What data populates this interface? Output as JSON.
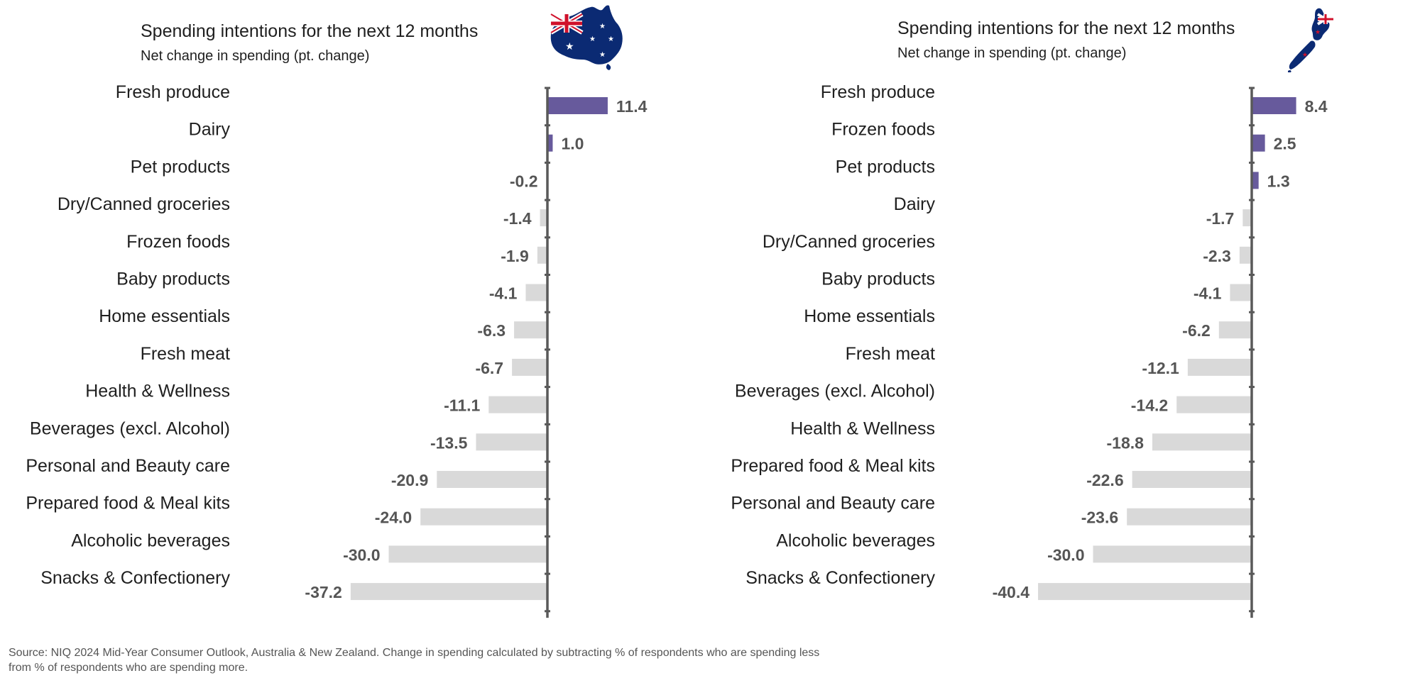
{
  "colors": {
    "positive": "#675a9c",
    "negative": "#d9d9d9",
    "axis": "#595959",
    "value_text": "#555555"
  },
  "chart_data": [
    {
      "type": "bar",
      "orientation": "horizontal",
      "title": "Spending intentions for the next 12 months",
      "subtitle": "Net change in spending (pt. change)",
      "flag_icon": "australia-flag-icon",
      "categories": [
        "Fresh produce",
        "Dairy",
        "Pet products",
        "Dry/Canned groceries",
        "Frozen foods",
        "Baby products",
        "Home essentials",
        "Fresh meat",
        "Health & Wellness",
        "Beverages (excl. Alcohol)",
        "Personal and Beauty care",
        "Prepared food & Meal kits",
        "Alcoholic beverages",
        "Snacks & Confectionery"
      ],
      "values": [
        11.4,
        1.0,
        -0.2,
        -1.4,
        -1.9,
        -4.1,
        -6.3,
        -6.7,
        -11.1,
        -13.5,
        -20.9,
        -24.0,
        -30.0,
        -37.2
      ],
      "value_labels": [
        "11.4",
        "1.0",
        "-0.2",
        "-1.4",
        "-1.9",
        "-4.1",
        "-6.3",
        "-6.7",
        "-11.1",
        "-13.5",
        "-20.9",
        "-24.0",
        "-30.0",
        "-37.2"
      ],
      "xlim": [
        -40.4,
        11.4
      ],
      "grid": false
    },
    {
      "type": "bar",
      "orientation": "horizontal",
      "title": "Spending intentions for the next 12 months",
      "subtitle": "Net change in spending (pt. change)",
      "flag_icon": "new-zealand-flag-icon",
      "categories": [
        "Fresh produce",
        "Frozen foods",
        "Pet products",
        "Dairy",
        "Dry/Canned groceries",
        "Baby products",
        "Home essentials",
        "Fresh meat",
        "Beverages (excl. Alcohol)",
        "Health & Wellness",
        "Prepared food & Meal kits",
        "Personal and Beauty care",
        "Alcoholic beverages",
        "Snacks & Confectionery"
      ],
      "values": [
        8.4,
        2.5,
        1.3,
        -1.7,
        -2.3,
        -4.1,
        -6.2,
        -12.1,
        -14.2,
        -18.8,
        -22.6,
        -23.6,
        -30.0,
        -40.4
      ],
      "value_labels": [
        "8.4",
        "2.5",
        "1.3",
        "-1.7",
        "-2.3",
        "-4.1",
        "-6.2",
        "-12.1",
        "-14.2",
        "-18.8",
        "-22.6",
        "-23.6",
        "-30.0",
        "-40.4"
      ],
      "xlim": [
        -40.4,
        11.4
      ],
      "grid": false
    }
  ],
  "source_note": "Source: NIQ 2024 Mid-Year Consumer Outlook, Australia & New Zealand. Change in spending calculated by subtracting % of respondents who are spending less from % of respondents who are spending more."
}
